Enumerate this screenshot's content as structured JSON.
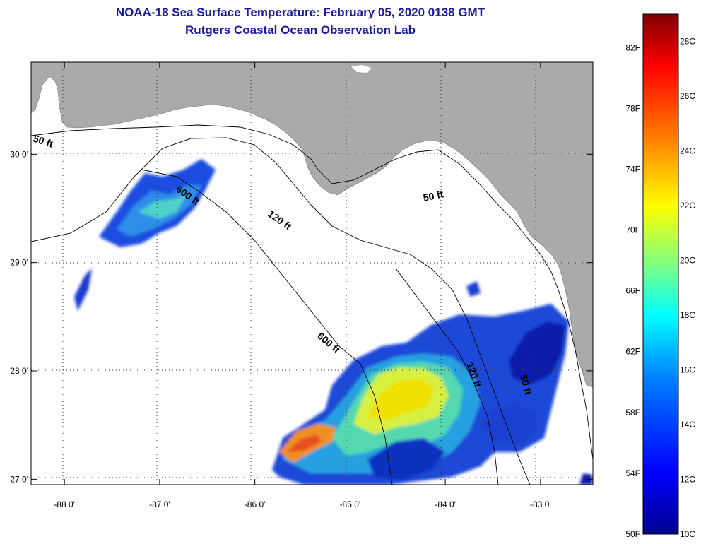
{
  "title": {
    "line1": "NOAA-18 Sea Surface Temperature:  February 05, 2020 0138 GMT",
    "line2": "Rutgers Coastal Ocean Observation Lab"
  },
  "map": {
    "lon_range": [
      -88.35,
      -82.45
    ],
    "lat_range": [
      26.95,
      30.85
    ],
    "lon_ticks": [
      {
        "value": -88,
        "label": "-88 0'"
      },
      {
        "value": -87,
        "label": "-87 0'"
      },
      {
        "value": -86,
        "label": "-86 0'"
      },
      {
        "value": -85,
        "label": "-85 0'"
      },
      {
        "value": -84,
        "label": "-84 0'"
      },
      {
        "value": -83,
        "label": "-83 0'"
      }
    ],
    "lat_ticks": [
      {
        "value": 30,
        "label": "30 0'"
      },
      {
        "value": 29,
        "label": "29 0'"
      },
      {
        "value": 28,
        "label": "28 0'"
      },
      {
        "value": 27,
        "label": "27 0'"
      }
    ],
    "land_color": "#aaaaaa",
    "water_color": "#ffffff",
    "gridlines": "dotted",
    "contours": [
      {
        "depth": "50 ft",
        "labels": [
          "50 ft",
          "50 ft",
          "50 ft"
        ]
      },
      {
        "depth": "120 ft",
        "labels": [
          "120 ft",
          "120 ft"
        ]
      },
      {
        "depth": "600 ft",
        "labels": [
          "600 ft",
          "600 ft"
        ]
      }
    ]
  },
  "colorbar": {
    "range_c": [
      10,
      29
    ],
    "colors": [
      "#00008f",
      "#0000ff",
      "#0080ff",
      "#00ffff",
      "#80ff80",
      "#ffff00",
      "#ff8000",
      "#ff0000",
      "#800000"
    ],
    "f_labels": [
      {
        "value_c": 27.78,
        "label": "82F"
      },
      {
        "value_c": 25.56,
        "label": "78F"
      },
      {
        "value_c": 23.33,
        "label": "74F"
      },
      {
        "value_c": 21.11,
        "label": "70F"
      },
      {
        "value_c": 18.89,
        "label": "66F"
      },
      {
        "value_c": 16.67,
        "label": "62F"
      },
      {
        "value_c": 14.44,
        "label": "58F"
      },
      {
        "value_c": 12.22,
        "label": "54F"
      },
      {
        "value_c": 10.0,
        "label": "50F"
      }
    ],
    "c_labels": [
      {
        "value_c": 28,
        "label": "28C"
      },
      {
        "value_c": 26,
        "label": "26C"
      },
      {
        "value_c": 24,
        "label": "24C"
      },
      {
        "value_c": 22,
        "label": "22C"
      },
      {
        "value_c": 20,
        "label": "20C"
      },
      {
        "value_c": 18,
        "label": "18C"
      },
      {
        "value_c": 16,
        "label": "16C"
      },
      {
        "value_c": 14,
        "label": "14C"
      },
      {
        "value_c": 12,
        "label": "12C"
      },
      {
        "value_c": 10,
        "label": "10C"
      }
    ]
  }
}
